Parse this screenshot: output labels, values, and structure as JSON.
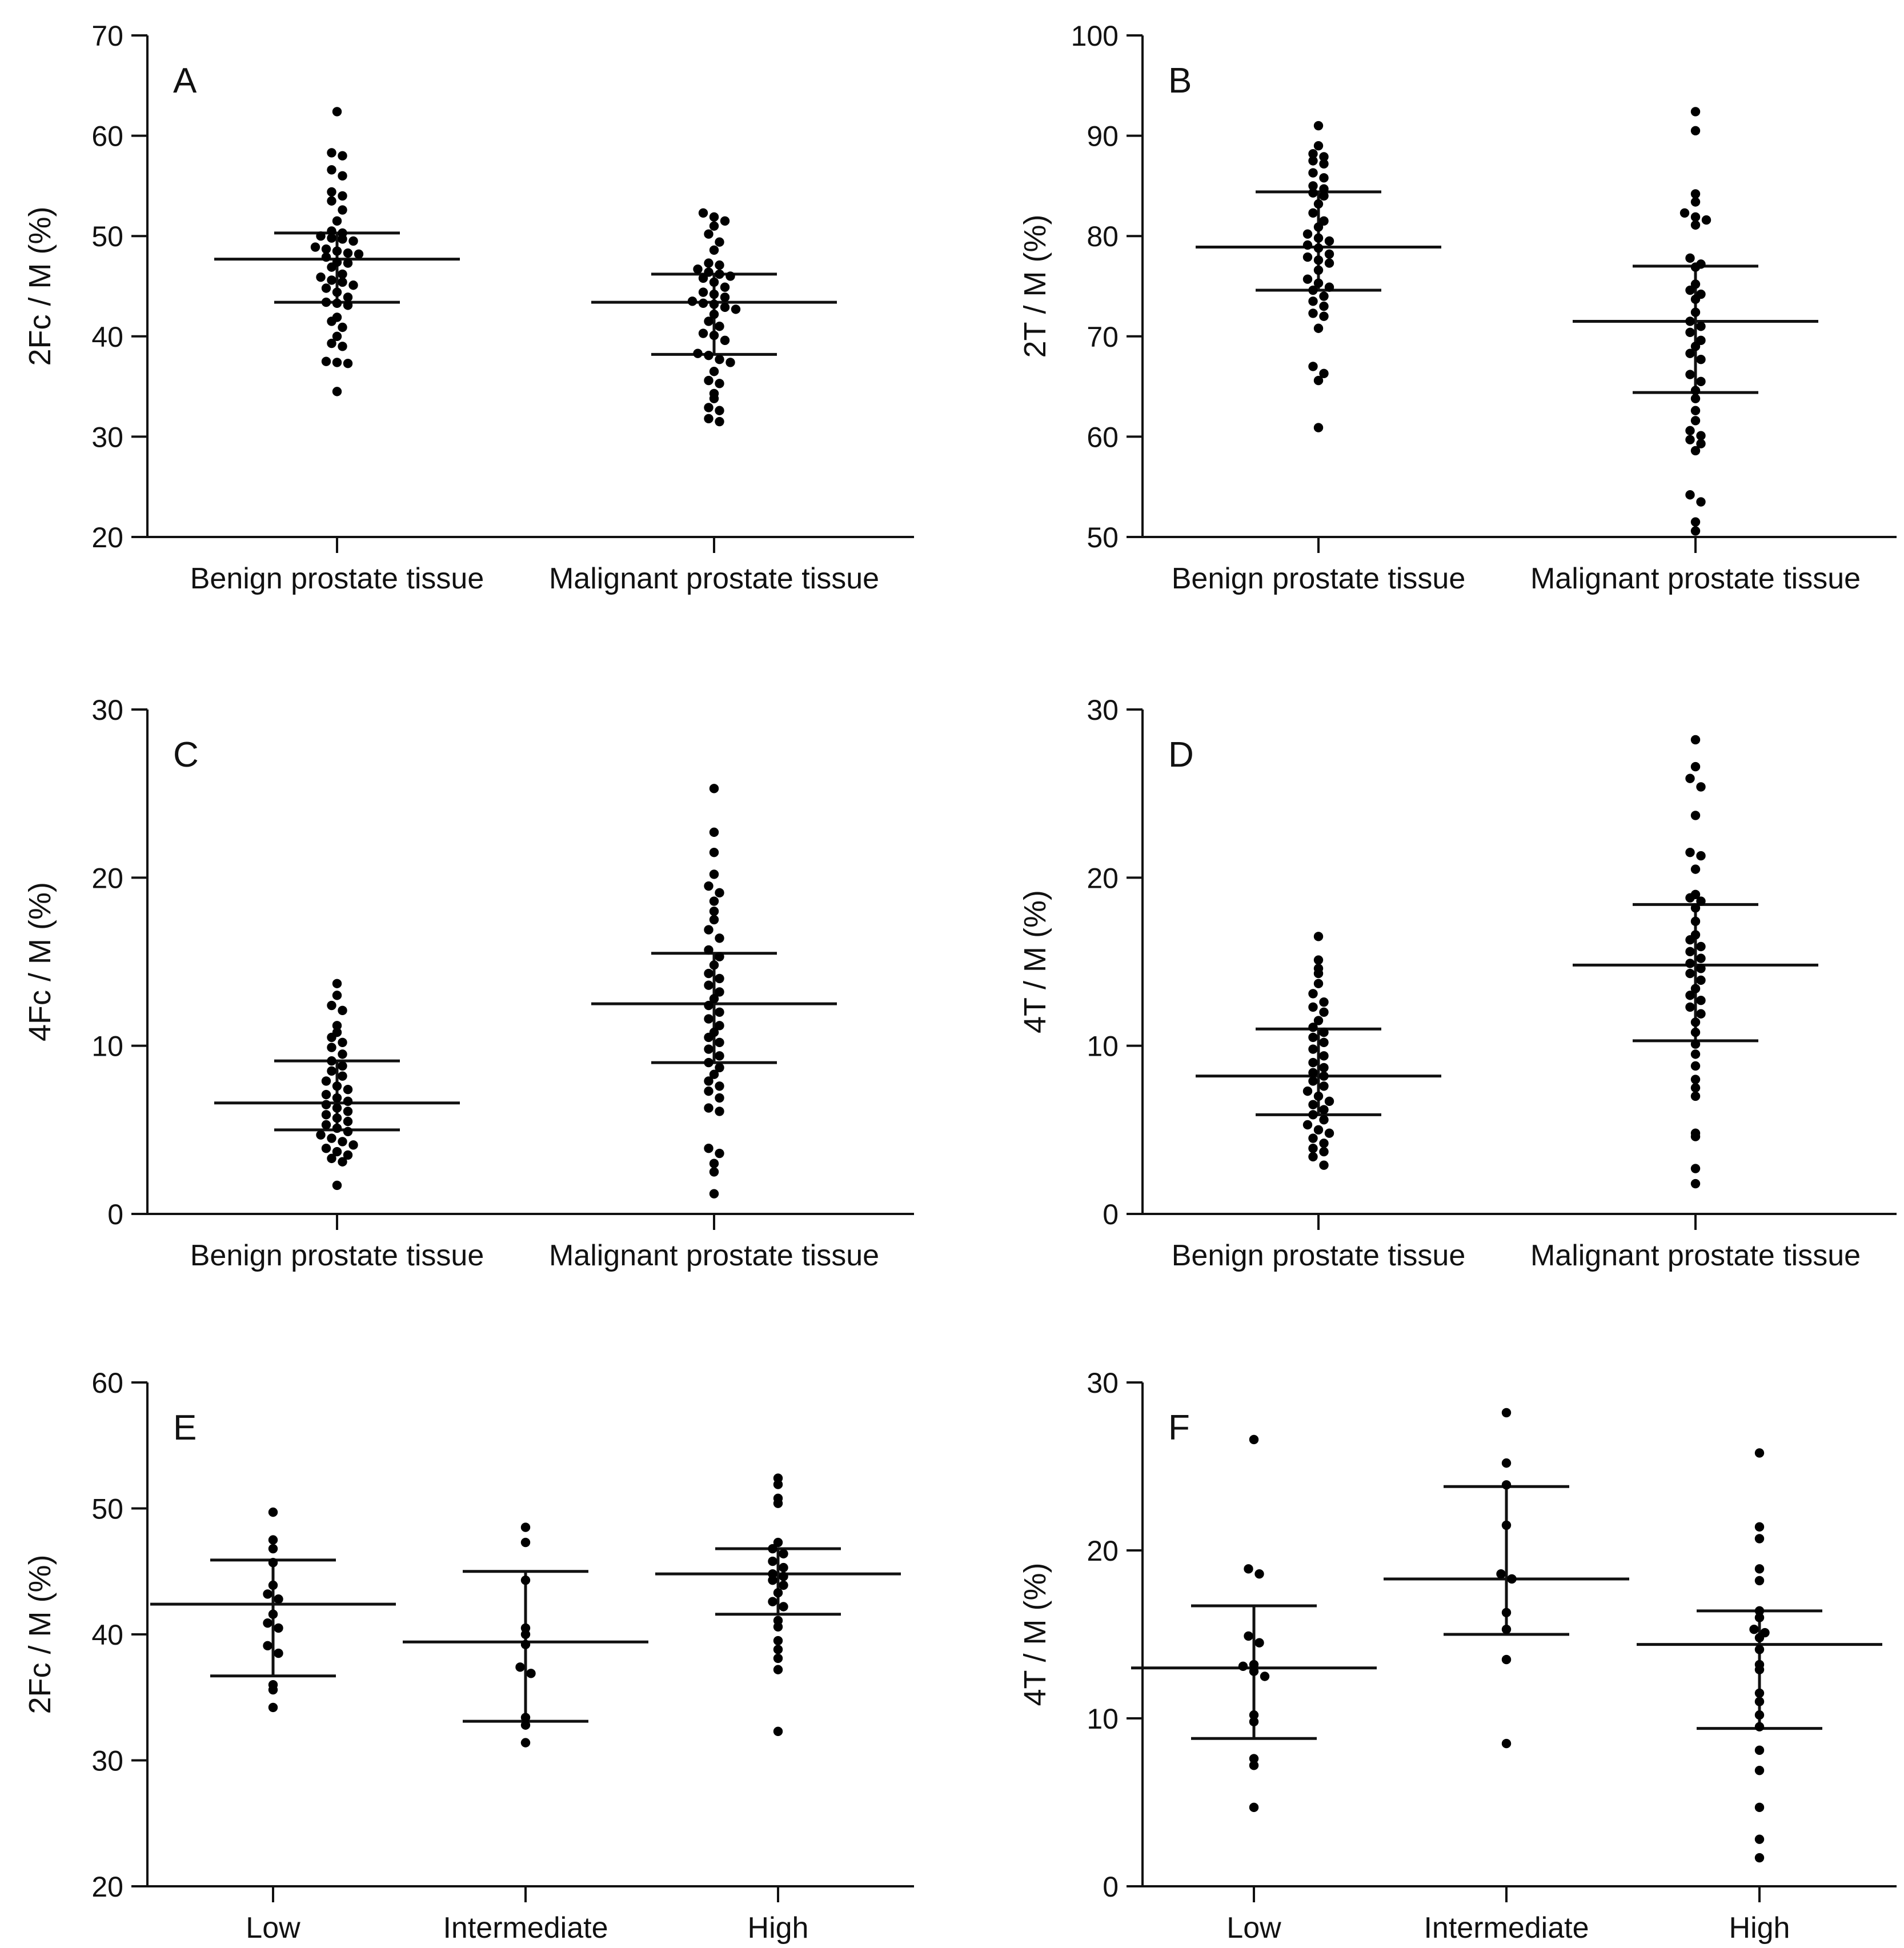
{
  "figure_title": "",
  "chart_data": [
    {
      "panel": "A",
      "type": "scatter",
      "ylabel": "2Fc / M (%)",
      "ylim": [
        20,
        70
      ],
      "yticks": [
        20,
        30,
        40,
        50,
        60,
        70
      ],
      "categories": [
        "Benign prostate tissue",
        "Malignant prostate tissue"
      ],
      "groups": [
        {
          "values": [
            62.4,
            58.3,
            58,
            56.6,
            56,
            54.4,
            54,
            53.5,
            52.6,
            51.5,
            50.5,
            50.3,
            50,
            49.8,
            49.7,
            49.5,
            48.9,
            48.7,
            48.5,
            48.3,
            48.2,
            47.9,
            47.4,
            47.3,
            46.9,
            46.2,
            45.9,
            45.6,
            45.4,
            45.1,
            44.8,
            44.4,
            43.9,
            43.4,
            43.3,
            43.1,
            41.9,
            41.5,
            40.9,
            40,
            39.3,
            39,
            37.5,
            37.4,
            37.3,
            34.5
          ],
          "median": 47.7,
          "q1": 43.4,
          "q3": 50.3
        },
        {
          "values": [
            52.3,
            51.9,
            51.5,
            51,
            50.2,
            49.4,
            48.6,
            47.3,
            47.1,
            46.7,
            46.4,
            46.2,
            46,
            45.8,
            45.4,
            44.9,
            44.4,
            44.2,
            43.9,
            43.5,
            43.3,
            43.2,
            42.9,
            42.7,
            42.2,
            41.5,
            41,
            40.3,
            40.1,
            39.6,
            38.3,
            38.1,
            37.7,
            37.4,
            36.5,
            35.6,
            35.3,
            34.3,
            33.8,
            32.9,
            32.6,
            31.8,
            31.5
          ],
          "median": 43.4,
          "q1": 38.2,
          "q3": 46.2
        }
      ]
    },
    {
      "panel": "B",
      "type": "scatter",
      "ylabel": "2T / M (%)",
      "ylim": [
        50,
        100
      ],
      "yticks": [
        50,
        60,
        70,
        80,
        90,
        100
      ],
      "categories": [
        "Benign prostate tissue",
        "Malignant prostate tissue"
      ],
      "groups": [
        {
          "values": [
            91,
            89,
            88.2,
            87.9,
            87.5,
            87.2,
            86.3,
            85.8,
            85,
            84.7,
            84.3,
            84,
            83.2,
            82.3,
            81.5,
            80.9,
            80.2,
            79.8,
            79.5,
            79.1,
            78.8,
            78.2,
            77.9,
            77.6,
            77.3,
            76.6,
            75.7,
            75.3,
            74.9,
            74.6,
            74,
            73.5,
            73,
            72.3,
            72,
            70.8,
            67,
            66.3,
            65.6,
            60.9
          ],
          "median": 78.9,
          "q1": 74.6,
          "q3": 84.4
        },
        {
          "values": [
            92.4,
            90.5,
            84.2,
            83.4,
            82.3,
            81.9,
            81.6,
            81.1,
            77.8,
            77.2,
            76.9,
            75.2,
            74.6,
            74.2,
            73.7,
            72.4,
            71.5,
            71,
            70.4,
            69.6,
            69,
            68.3,
            67.7,
            66.2,
            65.5,
            64.6,
            63.8,
            62.6,
            61.6,
            60.6,
            60.1,
            59.7,
            59.3,
            58.6,
            54.2,
            53.5,
            51.5,
            50.6
          ],
          "median": 71.5,
          "q1": 64.4,
          "q3": 77
        }
      ]
    },
    {
      "panel": "C",
      "type": "scatter",
      "ylabel": "4Fc / M (%)",
      "ylim": [
        0,
        30
      ],
      "yticks": [
        0,
        10,
        20,
        30
      ],
      "categories": [
        "Benign prostate tissue",
        "Malignant prostate tissue"
      ],
      "groups": [
        {
          "values": [
            13.7,
            13,
            12.4,
            12.1,
            11.2,
            10.8,
            10.5,
            10.2,
            9.9,
            9.5,
            9.1,
            8.8,
            8.5,
            8.2,
            7.9,
            7.6,
            7.4,
            7.1,
            6.9,
            6.7,
            6.5,
            6.3,
            6.1,
            5.9,
            5.7,
            5.5,
            5.3,
            5.1,
            4.9,
            4.7,
            4.5,
            4.3,
            4.1,
            3.9,
            3.7,
            3.5,
            3.3,
            3.1,
            1.7
          ],
          "median": 6.6,
          "q1": 5,
          "q3": 9.1
        },
        {
          "values": [
            25.3,
            22.7,
            21.5,
            20.2,
            19.5,
            19.1,
            18.6,
            18,
            17.5,
            16.9,
            16.4,
            15.7,
            15.3,
            14.8,
            14.3,
            14,
            13.6,
            13.2,
            12.8,
            12.4,
            12,
            11.6,
            11.2,
            10.8,
            10.5,
            10.2,
            9.8,
            9.4,
            9,
            8.7,
            8.3,
            7.9,
            7.6,
            7.3,
            6.9,
            6.3,
            6.1,
            3.9,
            3.6,
            3,
            2.5,
            1.2
          ],
          "median": 12.5,
          "q1": 9,
          "q3": 15.5
        }
      ]
    },
    {
      "panel": "D",
      "type": "scatter",
      "ylabel": "4T / M (%)",
      "ylim": [
        0,
        30
      ],
      "yticks": [
        0,
        10,
        20,
        30
      ],
      "categories": [
        "Benign prostate tissue",
        "Malignant prostate tissue"
      ],
      "groups": [
        {
          "values": [
            16.5,
            15.1,
            14.6,
            14.3,
            13.7,
            13.1,
            12.6,
            12.3,
            12,
            11.5,
            11.1,
            10.8,
            10.5,
            10.2,
            9.8,
            9.4,
            9,
            8.7,
            8.4,
            8.2,
            7.9,
            7.6,
            7.3,
            7,
            6.7,
            6.5,
            6.2,
            5.9,
            5.6,
            5.3,
            5,
            4.8,
            4.5,
            4.2,
            3.9,
            3.7,
            3.4,
            2.9
          ],
          "median": 8.2,
          "q1": 5.9,
          "q3": 11
        },
        {
          "values": [
            28.2,
            26.6,
            25.9,
            25.4,
            23.7,
            21.5,
            21.3,
            20.5,
            19,
            18.8,
            18.6,
            18.2,
            17.4,
            16.6,
            16.3,
            15.9,
            15.6,
            15.2,
            14.9,
            14.6,
            14.3,
            13.9,
            13.4,
            13,
            12.7,
            12.3,
            11.9,
            11.4,
            10.8,
            10.1,
            9.5,
            8.8,
            8,
            7.5,
            7,
            4.8,
            4.6,
            2.7,
            1.8
          ],
          "median": 14.8,
          "q1": 10.3,
          "q3": 18.4
        }
      ]
    },
    {
      "panel": "E",
      "type": "scatter",
      "ylabel": "2Fc / M (%)",
      "ylim": [
        20,
        60
      ],
      "yticks": [
        20,
        30,
        40,
        50,
        60
      ],
      "categories": [
        "Low",
        "Intermediate",
        "High"
      ],
      "groups": [
        {
          "values": [
            49.7,
            47.5,
            46.8,
            45.7,
            43.9,
            43.2,
            42.8,
            41.6,
            40.9,
            40.5,
            39.1,
            38.5,
            36,
            35.6,
            34.2
          ],
          "median": 42.4,
          "q1": 36.7,
          "q3": 45.9
        },
        {
          "values": [
            48.5,
            47.3,
            44.3,
            40.5,
            40,
            39.2,
            37.4,
            36.9,
            33.4,
            32.8,
            31.4
          ],
          "median": 39.4,
          "q1": 33.1,
          "q3": 45
        },
        {
          "values": [
            52.4,
            51.9,
            50.8,
            50.4,
            47.3,
            46.8,
            46.4,
            45.8,
            45.3,
            44.8,
            44.6,
            44.3,
            43.9,
            43.3,
            42.6,
            42.2,
            41.1,
            40.6,
            39.5,
            38.8,
            38.1,
            37.2,
            32.3
          ],
          "median": 44.8,
          "q1": 41.6,
          "q3": 46.8
        }
      ]
    },
    {
      "panel": "F",
      "type": "scatter",
      "ylabel": "4T / M (%)",
      "ylim": [
        0,
        30
      ],
      "yticks": [
        0,
        10,
        20,
        30
      ],
      "categories": [
        "Low",
        "Intermediate",
        "High"
      ],
      "groups": [
        {
          "values": [
            26.6,
            18.9,
            18.6,
            14.9,
            14.5,
            13.2,
            13.1,
            12.8,
            12.5,
            10.2,
            9.8,
            7.6,
            7.2,
            4.7
          ],
          "median": 13,
          "q1": 8.8,
          "q3": 16.7
        },
        {
          "values": [
            28.2,
            25.2,
            23.9,
            21.5,
            18.6,
            18.3,
            16.3,
            15.3,
            13.5,
            8.5
          ],
          "median": 18.3,
          "q1": 15,
          "q3": 23.8
        },
        {
          "values": [
            25.8,
            21.4,
            20.7,
            18.9,
            18.2,
            16.4,
            16,
            15.3,
            15.1,
            14.8,
            14.1,
            13.2,
            12.9,
            11.5,
            11,
            10.2,
            9.5,
            8.1,
            6.9,
            4.7,
            2.8,
            1.7
          ],
          "median": 14.4,
          "q1": 9.4,
          "q3": 16.4
        }
      ]
    }
  ]
}
